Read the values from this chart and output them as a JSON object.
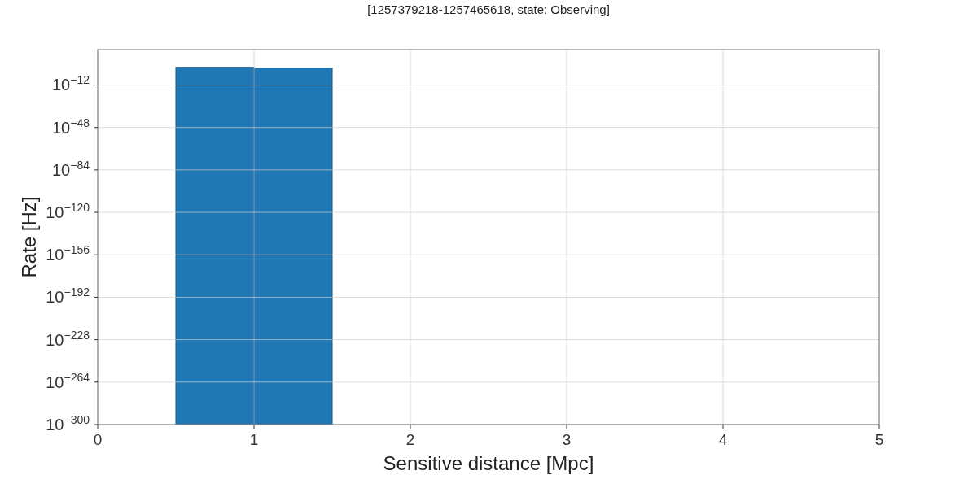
{
  "chart_data": {
    "type": "histogram",
    "title": "[1257379218-1257465618, state: Observing]",
    "xlabel": "Sensitive distance [Mpc]",
    "ylabel": "Rate [Hz]",
    "bins": [
      0.5,
      1,
      1.5
    ],
    "values": [
      1000.0,
      300.0
    ],
    "color": "#1f77b4",
    "log": "y",
    "grid": true,
    "xlim": [
      0,
      5
    ],
    "xticks": [
      0,
      1,
      2,
      3,
      4,
      5
    ],
    "ylim": [
      1e-300,
      1e+18
    ],
    "yticks": [
      {
        "value": 1e-300,
        "label": "10$^{−300}$"
      },
      {
        "value": 1e-264,
        "label": "10$^{−264}$"
      },
      {
        "value": 1e-228,
        "label": "10$^{−228}$"
      },
      {
        "value": 1e-192,
        "label": "10$^{−192}$"
      },
      {
        "value": 1e-156,
        "label": "10$^{−156}$"
      },
      {
        "value": 1e-120,
        "label": "10$^{−120}$"
      },
      {
        "value": 1e-84,
        "label": "10$^{−84}$"
      },
      {
        "value": 1e-48,
        "label": "10$^{−48}$"
      },
      {
        "value": 1e-12,
        "label": "10$^{−12}$"
      }
    ]
  }
}
